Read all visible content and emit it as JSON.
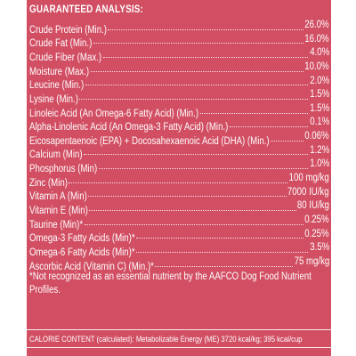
{
  "title": "GUARANTEED ANALYSIS:",
  "rows": [
    {
      "name": "Crude Protein (Min.)",
      "value": "26.0%"
    },
    {
      "name": "Crude Fat (Min.)",
      "value": "16.0%"
    },
    {
      "name": "Crude Fiber (Max.)",
      "value": "4.0%"
    },
    {
      "name": "Moisture (Max.)",
      "value": "10.0%"
    },
    {
      "name": "Leucine (Min.)",
      "value": "2.0%"
    },
    {
      "name": "Lysine (Min.)",
      "value": "1.5%"
    },
    {
      "name": "Linoleic Acid (An Omega-6 Fatty Acid) (Min.)",
      "value": "1.5%"
    },
    {
      "name": "Alpha-Linolenic Acid  (An Omega-3 Fatty Acid) (Min.)",
      "value": "0.1%"
    },
    {
      "name": "Eicosapentaenoic (EPA) + Docosahexaenoic Acid (DHA) (Min.)",
      "value": "0.06%"
    },
    {
      "name": "Calcium (Min)",
      "value": "1.2%"
    },
    {
      "name": "Phosphorus (Min)",
      "value": "1.0%"
    },
    {
      "name": "Zinc (Min)",
      "value": "100 mg/kg"
    },
    {
      "name": "Vitamin A (Min)",
      "value": "7000 IU/kg"
    },
    {
      "name": "Vitamin E (Min)",
      "value": "80 IU/kg"
    },
    {
      "name": "Taurine (Min)*",
      "value": "0.25%"
    },
    {
      "name": "Omega-3 Fatty Acids (Min)*",
      "value": "0.25%"
    },
    {
      "name": "Omega-6 Fatty Acids (Min)*",
      "value": "3.5%"
    },
    {
      "name": "Ascorbic Acid (Vitamin C) (Min.)*",
      "value": "75 mg/kg"
    }
  ],
  "footnote": "*Not recognized as an essential nutrient by the AAFCO Dog Food Nutrient Profiles.",
  "calorie_content": "CALORIE CONTENT (calculated): Metabolizable Energy (ME) 3720 kcal/kg;  395 kcal/cup",
  "colors": {
    "background": "#d14e63",
    "text": "#ffffff"
  }
}
